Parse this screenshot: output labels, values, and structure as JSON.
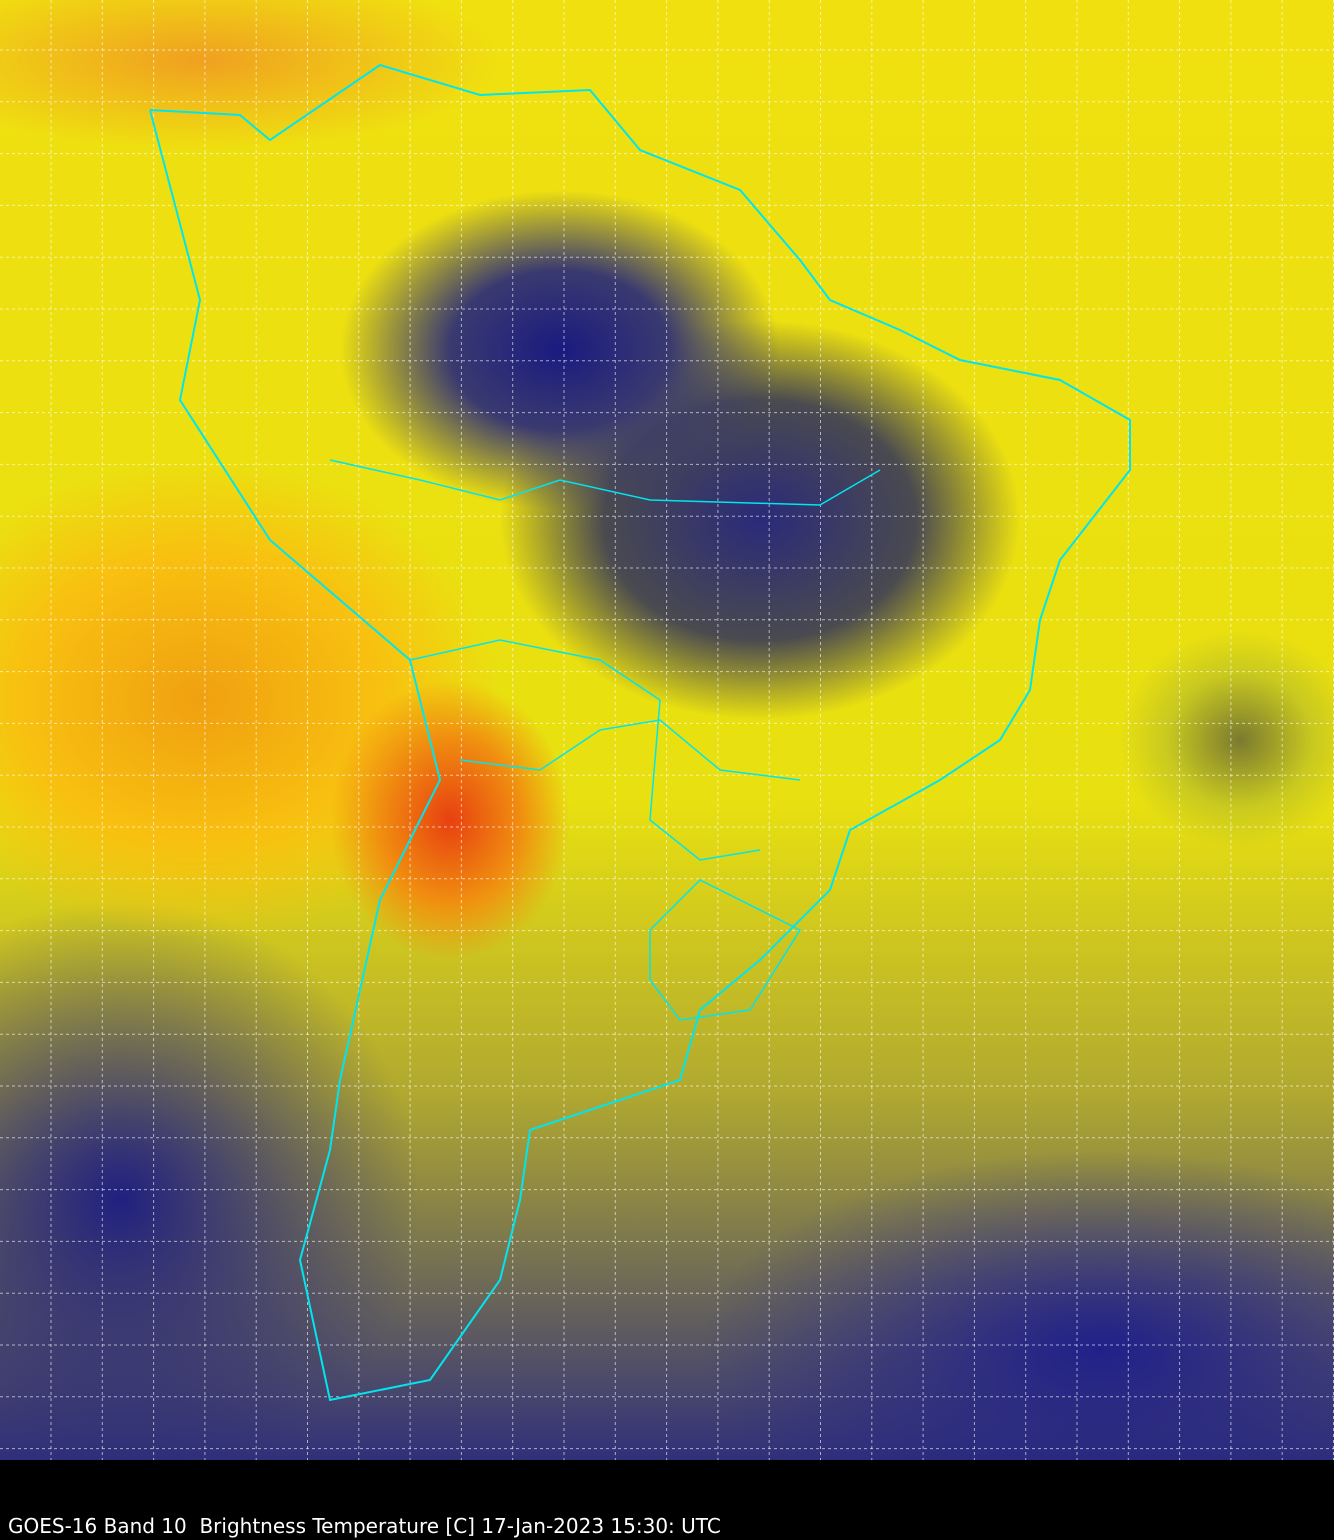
{
  "caption": "GOES-16 Band 10  Brightness Temperature [C] 17-Jan-2023 15:30: UTC",
  "colors": {
    "border_lines": "#00e5ee",
    "grid": "#ffffff",
    "warm": "#f5e50a",
    "hot": "#e84010",
    "cold": "#1a1a80",
    "background": "#000000"
  },
  "map": {
    "region": "South America",
    "grid": "dashed lat/lon graticule"
  }
}
